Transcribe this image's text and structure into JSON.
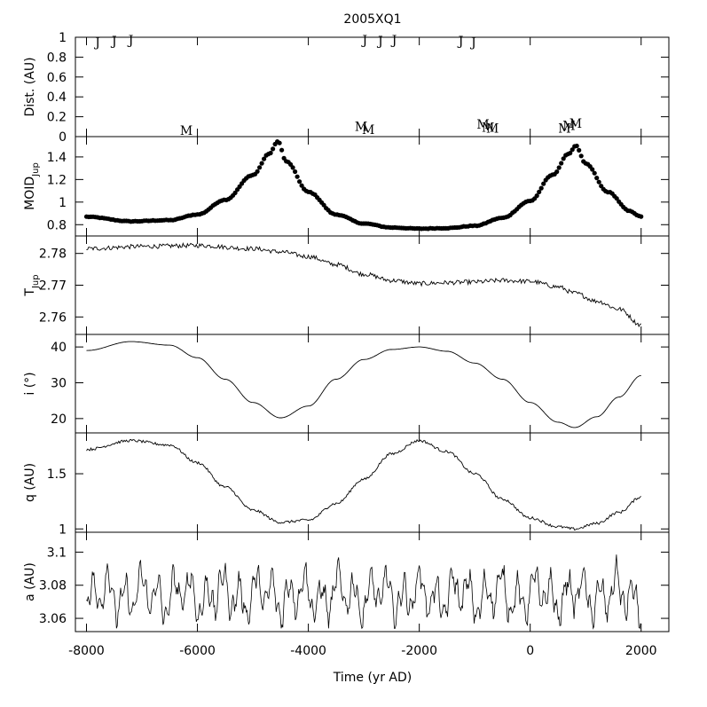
{
  "chart_data": {
    "type": "line",
    "title": "2005XQ1",
    "xlabel": "Time (yr AD)",
    "xlim": [
      -8200,
      2500
    ],
    "xticks": [
      -8000,
      -6000,
      -4000,
      -2000,
      0,
      2000
    ],
    "xtick_labels": [
      "-8000",
      "-6000",
      "-4000",
      "-2000",
      "0",
      "2000"
    ],
    "panels": [
      {
        "id": "dist",
        "ylabel": "Dist. (AU)",
        "ylim": [
          0,
          1
        ],
        "yticks": [
          0,
          0.2,
          0.4,
          0.6,
          0.8,
          1
        ],
        "ytick_labels": [
          "0",
          "0.2",
          "0.4",
          "0.6",
          "0.8",
          "1"
        ],
        "encounters": [
          {
            "planet": "J",
            "x": -7800,
            "y": 0.97
          },
          {
            "planet": "J",
            "x": -7500,
            "y": 0.98
          },
          {
            "planet": "J",
            "x": -7200,
            "y": 0.99
          },
          {
            "planet": "J",
            "x": -2980,
            "y": 0.99
          },
          {
            "planet": "J",
            "x": -2700,
            "y": 0.98
          },
          {
            "planet": "J",
            "x": -2450,
            "y": 0.99
          },
          {
            "planet": "J",
            "x": -1250,
            "y": 0.98
          },
          {
            "planet": "J",
            "x": -1020,
            "y": 0.97
          },
          {
            "planet": "M",
            "x": -6200,
            "y": 0.01
          },
          {
            "planet": "M",
            "x": -3050,
            "y": 0.05
          },
          {
            "planet": "M",
            "x": -2920,
            "y": 0.02
          },
          {
            "planet": "M",
            "x": -850,
            "y": 0.07
          },
          {
            "planet": "M",
            "x": -760,
            "y": 0.04
          },
          {
            "planet": "M",
            "x": -680,
            "y": 0.03
          },
          {
            "planet": "M",
            "x": 620,
            "y": 0.03
          },
          {
            "planet": "M",
            "x": 700,
            "y": 0.06
          },
          {
            "planet": "M",
            "x": 820,
            "y": 0.08
          }
        ]
      },
      {
        "id": "moid",
        "ylabel": "MOID",
        "ylabel_sub": "Jup",
        "ylim": [
          0.7,
          1.58
        ],
        "yticks": [
          0.8,
          1,
          1.2,
          1.4
        ],
        "ytick_labels": [
          "0.8",
          "1",
          "1.2",
          "1.4"
        ],
        "series_style": "dots",
        "x": [
          -8000,
          -7200,
          -6500,
          -6000,
          -5500,
          -5000,
          -4700,
          -4550,
          -4400,
          -4000,
          -3500,
          -3000,
          -2500,
          -2000,
          -1500,
          -1000,
          -500,
          0,
          400,
          700,
          820,
          1000,
          1400,
          1800,
          2000
        ],
        "values": [
          0.87,
          0.83,
          0.84,
          0.89,
          1.02,
          1.24,
          1.43,
          1.54,
          1.36,
          1.09,
          0.89,
          0.81,
          0.775,
          0.765,
          0.77,
          0.79,
          0.86,
          1.01,
          1.24,
          1.43,
          1.5,
          1.34,
          1.09,
          0.92,
          0.87
        ]
      },
      {
        "id": "tjup",
        "ylabel": "T",
        "ylabel_sub": "Jup",
        "ylim": [
          2.7545,
          2.7855
        ],
        "yticks": [
          2.76,
          2.77,
          2.78
        ],
        "ytick_labels": [
          "2.76",
          "2.77",
          "2.78"
        ],
        "x": [
          -8000,
          -7000,
          -6000,
          -5000,
          -4500,
          -4000,
          -3500,
          -3000,
          -2500,
          -2000,
          -1500,
          -1000,
          -500,
          0,
          500,
          800,
          1200,
          1600,
          2000
        ],
        "values": [
          2.7815,
          2.7822,
          2.7825,
          2.7815,
          2.7805,
          2.779,
          2.7765,
          2.7735,
          2.7715,
          2.7705,
          2.7708,
          2.771,
          2.7715,
          2.7712,
          2.7695,
          2.7675,
          2.765,
          2.7625,
          2.7575
        ],
        "noise": 0.0007
      },
      {
        "id": "inc",
        "ylabel": "i (°)",
        "ylim": [
          16,
          43.5
        ],
        "yticks": [
          20,
          30,
          40
        ],
        "ytick_labels": [
          "20",
          "30",
          "40"
        ],
        "x": [
          -8000,
          -7200,
          -6500,
          -6000,
          -5500,
          -5000,
          -4500,
          -4000,
          -3500,
          -3000,
          -2500,
          -2000,
          -1500,
          -1000,
          -500,
          0,
          500,
          800,
          1200,
          1600,
          2000
        ],
        "values": [
          39,
          41.5,
          40.5,
          37,
          31,
          24.5,
          20.2,
          23.5,
          31,
          36.5,
          39.3,
          40,
          38.8,
          35.5,
          31,
          24.5,
          19,
          17.5,
          20.5,
          26,
          32
        ]
      },
      {
        "id": "q",
        "ylabel": "q (AU)",
        "ylim": [
          0.97,
          1.87
        ],
        "yticks": [
          1,
          1.5
        ],
        "ytick_labels": [
          "1",
          "1.5"
        ],
        "x": [
          -8000,
          -7200,
          -6500,
          -6000,
          -5500,
          -5000,
          -4500,
          -4000,
          -3500,
          -3000,
          -2500,
          -2000,
          -1500,
          -1000,
          -500,
          0,
          500,
          800,
          1200,
          1600,
          2000
        ],
        "values": [
          1.72,
          1.8,
          1.76,
          1.6,
          1.38,
          1.17,
          1.06,
          1.08,
          1.23,
          1.45,
          1.68,
          1.8,
          1.7,
          1.5,
          1.27,
          1.1,
          1.02,
          1.0,
          1.05,
          1.15,
          1.29
        ],
        "noise": 0.012
      },
      {
        "id": "a",
        "ylabel": "a (AU)",
        "ylim": [
          3.052,
          3.112
        ],
        "yticks": [
          3.06,
          3.08,
          3.1
        ],
        "ytick_labels": [
          "3.06",
          "3.08",
          "3.1"
        ],
        "mean": 3.074,
        "amplitude": 0.018,
        "noise": 0.004
      }
    ]
  }
}
